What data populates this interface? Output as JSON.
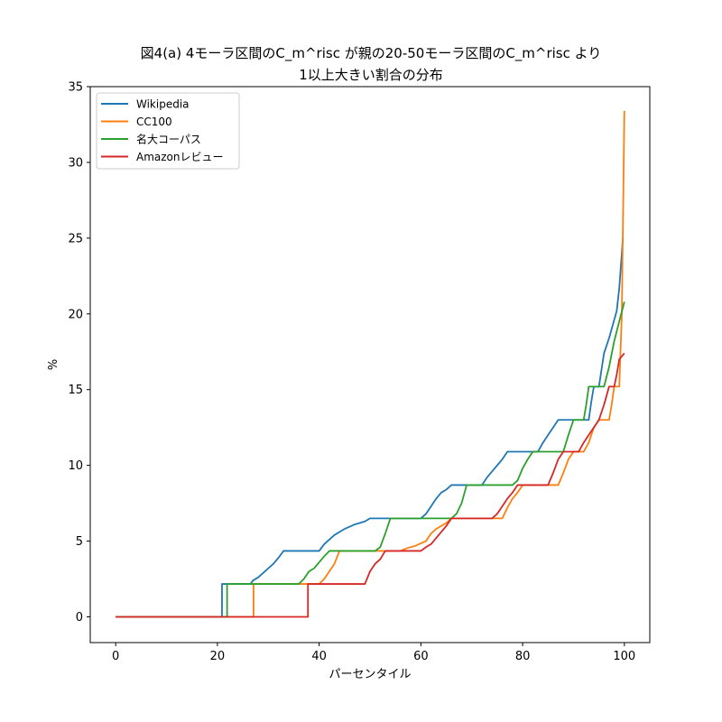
{
  "chart_data": {
    "type": "line",
    "title_line1": "図4(a) 4モーラ区間のC_m^risc が親の20-50モーラ区間のC_m^risc より",
    "title_line2": "1以上大きい割合の分布",
    "xlabel": "パーセンタイル",
    "ylabel": "%",
    "xlim": [
      -5,
      105
    ],
    "ylim": [
      -1.7,
      35
    ],
    "xticks": [
      0,
      20,
      40,
      60,
      80,
      100
    ],
    "yticks": [
      0,
      5,
      10,
      15,
      20,
      25,
      30,
      35
    ],
    "grid": false,
    "legend_position": "upper-left",
    "series": [
      {
        "name": "Wikipedia",
        "color": "#1f77b4",
        "points": [
          [
            0,
            0
          ],
          [
            20.9,
            0
          ],
          [
            20.9,
            2.17
          ],
          [
            26.5,
            2.17
          ],
          [
            27,
            2.4
          ],
          [
            28,
            2.6
          ],
          [
            29,
            2.9
          ],
          [
            30,
            3.2
          ],
          [
            31,
            3.5
          ],
          [
            32,
            3.9
          ],
          [
            33,
            4.35
          ],
          [
            40,
            4.35
          ],
          [
            41,
            4.8
          ],
          [
            43,
            5.4
          ],
          [
            45,
            5.8
          ],
          [
            47,
            6.1
          ],
          [
            49,
            6.3
          ],
          [
            50,
            6.5
          ],
          [
            60,
            6.5
          ],
          [
            61,
            6.8
          ],
          [
            62,
            7.3
          ],
          [
            63,
            7.8
          ],
          [
            64,
            8.2
          ],
          [
            65,
            8.4
          ],
          [
            66,
            8.7
          ],
          [
            72,
            8.7
          ],
          [
            73,
            9.2
          ],
          [
            74,
            9.6
          ],
          [
            75,
            10
          ],
          [
            76,
            10.4
          ],
          [
            77,
            10.9
          ],
          [
            83,
            10.9
          ],
          [
            84,
            11.5
          ],
          [
            85,
            12
          ],
          [
            86,
            12.5
          ],
          [
            87,
            13
          ],
          [
            93,
            13
          ],
          [
            93.5,
            14.2
          ],
          [
            94,
            15.2
          ],
          [
            95,
            15.2
          ],
          [
            95.5,
            16.3
          ],
          [
            96,
            17.4
          ],
          [
            97,
            18.4
          ],
          [
            98,
            19.6
          ],
          [
            98.5,
            20.2
          ],
          [
            99,
            21.7
          ],
          [
            99.5,
            24
          ],
          [
            99.7,
            25
          ]
        ]
      },
      {
        "name": "CC100",
        "color": "#ff7f0e",
        "points": [
          [
            0,
            0
          ],
          [
            27.1,
            0
          ],
          [
            27.1,
            2.17
          ],
          [
            40,
            2.17
          ],
          [
            41,
            2.5
          ],
          [
            42,
            3
          ],
          [
            43,
            3.5
          ],
          [
            44,
            4.35
          ],
          [
            55,
            4.35
          ],
          [
            56,
            4.35
          ],
          [
            57,
            4.5
          ],
          [
            59,
            4.7
          ],
          [
            61,
            5
          ],
          [
            62,
            5.5
          ],
          [
            63,
            5.8
          ],
          [
            64,
            6
          ],
          [
            65,
            6.2
          ],
          [
            66,
            6.5
          ],
          [
            76,
            6.5
          ],
          [
            77,
            7.2
          ],
          [
            78,
            7.8
          ],
          [
            79,
            8.2
          ],
          [
            80,
            8.7
          ],
          [
            87,
            8.7
          ],
          [
            88,
            9.5
          ],
          [
            89,
            10.4
          ],
          [
            90,
            10.9
          ],
          [
            92,
            10.9
          ],
          [
            93,
            11.5
          ],
          [
            94,
            12.5
          ],
          [
            95,
            13
          ],
          [
            97,
            13
          ],
          [
            97.5,
            14
          ],
          [
            98,
            15.2
          ],
          [
            99,
            15.2
          ],
          [
            99.5,
            20
          ],
          [
            100,
            33.4
          ]
        ]
      },
      {
        "name": "名大コーパス",
        "color": "#2ca02c",
        "points": [
          [
            0,
            0
          ],
          [
            21.9,
            0
          ],
          [
            21.9,
            2.17
          ],
          [
            36,
            2.17
          ],
          [
            37,
            2.5
          ],
          [
            38,
            3
          ],
          [
            39,
            3.2
          ],
          [
            40,
            3.6
          ],
          [
            41,
            4
          ],
          [
            42,
            4.35
          ],
          [
            51,
            4.35
          ],
          [
            52,
            4.6
          ],
          [
            53,
            5.5
          ],
          [
            54,
            6.5
          ],
          [
            66,
            6.5
          ],
          [
            67,
            6.8
          ],
          [
            68,
            7.5
          ],
          [
            69,
            8.7
          ],
          [
            78,
            8.7
          ],
          [
            79,
            9
          ],
          [
            80,
            9.8
          ],
          [
            81,
            10.4
          ],
          [
            82,
            10.9
          ],
          [
            88,
            10.9
          ],
          [
            89,
            12
          ],
          [
            90,
            13
          ],
          [
            92,
            13
          ],
          [
            92.5,
            14
          ],
          [
            93,
            15.2
          ],
          [
            96,
            15.2
          ],
          [
            97,
            16.5
          ],
          [
            98,
            18.2
          ],
          [
            99,
            19.5
          ],
          [
            100,
            20.8
          ]
        ]
      },
      {
        "name": "Amazonレビュー",
        "color": "#d62728",
        "points": [
          [
            0,
            0
          ],
          [
            37.8,
            0
          ],
          [
            37.8,
            2.17
          ],
          [
            49,
            2.17
          ],
          [
            50,
            3
          ],
          [
            51,
            3.5
          ],
          [
            52,
            3.8
          ],
          [
            53,
            4.35
          ],
          [
            60,
            4.35
          ],
          [
            61,
            4.6
          ],
          [
            62,
            4.8
          ],
          [
            63,
            5.2
          ],
          [
            64,
            5.6
          ],
          [
            65,
            6
          ],
          [
            66,
            6.5
          ],
          [
            74,
            6.5
          ],
          [
            75,
            6.8
          ],
          [
            76,
            7.3
          ],
          [
            77,
            7.8
          ],
          [
            78,
            8.2
          ],
          [
            79,
            8.7
          ],
          [
            85,
            8.7
          ],
          [
            86,
            9.5
          ],
          [
            87,
            10.4
          ],
          [
            88,
            10.9
          ],
          [
            91,
            10.9
          ],
          [
            92,
            11.5
          ],
          [
            93,
            12
          ],
          [
            94,
            12.5
          ],
          [
            95,
            13
          ],
          [
            96,
            14
          ],
          [
            97,
            15.2
          ],
          [
            98,
            15.2
          ],
          [
            98.5,
            16
          ],
          [
            99,
            17
          ],
          [
            100,
            17.4
          ]
        ]
      }
    ]
  }
}
